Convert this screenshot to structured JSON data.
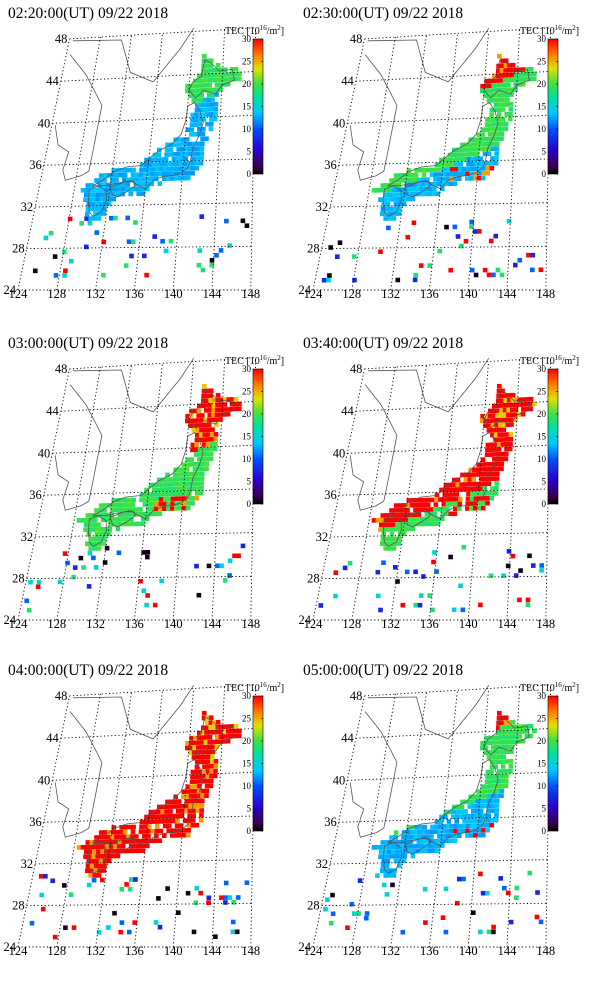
{
  "units": {
    "tec_prefix": "TEC [10",
    "tec_exp": "16",
    "tec_mid": "/m",
    "tec_exp2": "2",
    "tec_close": "]"
  },
  "colorbar": {
    "min": 0,
    "max": 30,
    "ticks": [
      "0",
      "5",
      "10",
      "15",
      "20",
      "25",
      "30"
    ]
  },
  "lat_labels": [
    "48",
    "44",
    "40",
    "36",
    "32",
    "28",
    "24"
  ],
  "lon_labels": [
    "124",
    "128",
    "132",
    "136",
    "140",
    "144",
    "148"
  ],
  "panels": [
    {
      "title": "02:20:00(UT)  09/22 2018",
      "level": 0.15
    },
    {
      "title": "02:30:00(UT)  09/22 2018",
      "level": 0.35
    },
    {
      "title": "03:00:00(UT)  09/22 2018",
      "level": 0.5
    },
    {
      "title": "03:40:00(UT)  09/22 2018",
      "level": 0.65
    },
    {
      "title": "04:00:00(UT)  09/22 2018",
      "level": 0.8
    },
    {
      "title": "05:00:00(UT)  09/22 2018",
      "level": 0.3
    }
  ]
}
